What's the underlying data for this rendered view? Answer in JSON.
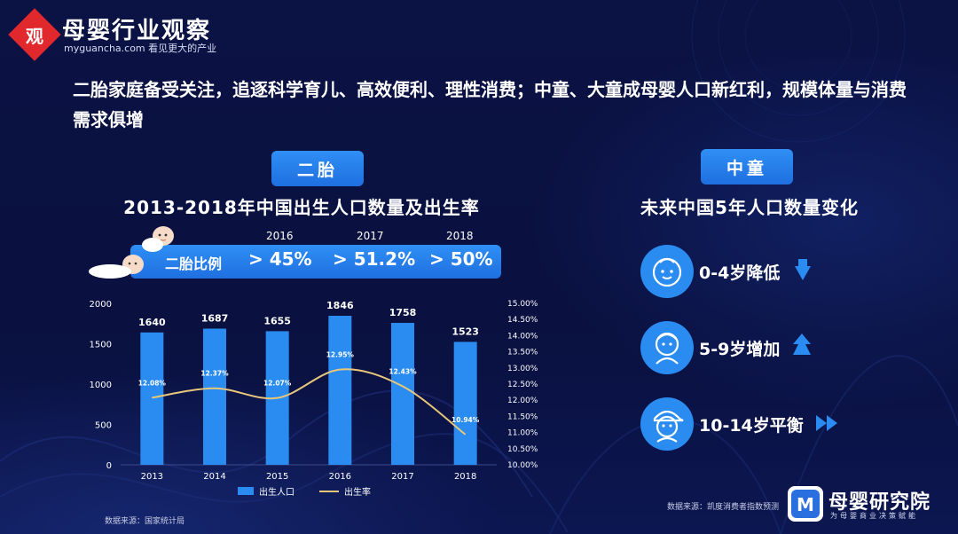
{
  "brand": {
    "logo_char": "观",
    "name": "母婴行业观察",
    "sub": "myguancha.com 看见更大的产业"
  },
  "headline": "二胎家庭备受关注，追逐科学育儿、高效便利、理性消费；中童、大童成母婴人口新红利，规模体量与消费需求俱增",
  "left_panel": {
    "pill": "二胎",
    "ratio_label": "二胎比例",
    "ratios": [
      {
        "year": "2016",
        "value": "> 45%"
      },
      {
        "year": "2017",
        "value": "> 51.2%"
      },
      {
        "year": "2018",
        "value": "> 50%"
      }
    ],
    "source": "数据来源：国家统计局"
  },
  "right_panel": {
    "pill": "中童",
    "title": "未来中国5年人口数量变化",
    "items": [
      {
        "label": "0-4岁降低",
        "icon": "baby-face-icon",
        "trend": "down"
      },
      {
        "label": "5-9岁增加",
        "icon": "child-face-icon",
        "trend": "up"
      },
      {
        "label": "10-14岁平衡",
        "icon": "boy-cap-face-icon",
        "trend": "flat"
      }
    ],
    "source": "数据来源：凯度消费者指数预测"
  },
  "footer": {
    "logo_glyph": "M",
    "name": "母婴研究院",
    "sub": "为母婴商业决策赋能"
  },
  "colors": {
    "background": "#0a1140",
    "bar": "#2a8cf0",
    "line": "#e8c77a",
    "pill": "#2a84f0",
    "circle": "#2a8cf0",
    "arrow": "#2a8cf0"
  },
  "chart_data": {
    "type": "bar",
    "title": "2013-2018年中国出生人口数量及出生率",
    "categories": [
      "2013",
      "2014",
      "2015",
      "2016",
      "2017",
      "2018"
    ],
    "series": [
      {
        "name": "出生人口",
        "type": "bar",
        "axis": "left",
        "values": [
          1640,
          1687,
          1655,
          1846,
          1758,
          1523
        ],
        "labels": [
          "1640",
          "1687",
          "1655",
          "1846",
          "1758",
          "1523"
        ]
      },
      {
        "name": "出生率",
        "type": "line",
        "axis": "right",
        "values": [
          12.08,
          12.37,
          12.07,
          12.95,
          12.43,
          10.94
        ],
        "labels": [
          "12.08%",
          "12.37%",
          "12.07%",
          "12.95%",
          "12.43%",
          "10.94%"
        ]
      }
    ],
    "y_left": {
      "min": 0,
      "max": 2000,
      "ticks": [
        "0",
        "500",
        "1000",
        "1500",
        "2000"
      ]
    },
    "y_right": {
      "min": 10.0,
      "max": 15.0,
      "ticks": [
        "10.00%",
        "10.50%",
        "11.00%",
        "11.50%",
        "12.00%",
        "12.50%",
        "13.00%",
        "13.50%",
        "14.00%",
        "14.50%",
        "15.00%"
      ]
    },
    "legend_position": "bottom",
    "grid": false
  }
}
